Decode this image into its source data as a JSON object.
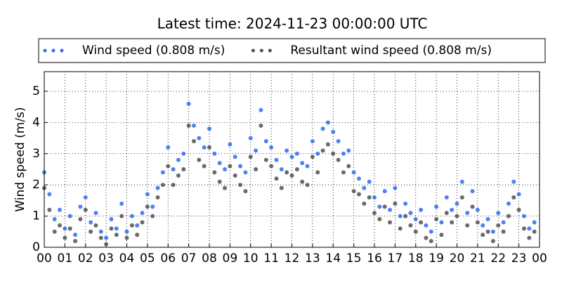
{
  "chart_data": {
    "type": "scatter",
    "title": "Latest time: 2024-11-23 00:00:00 UTC",
    "ylabel": "Wind speed (m/s)",
    "x": [
      0,
      0.25,
      0.5,
      0.75,
      1,
      1.25,
      1.5,
      1.75,
      2,
      2.25,
      2.5,
      2.75,
      3,
      3.25,
      3.5,
      3.75,
      4,
      4.25,
      4.5,
      4.75,
      5,
      5.25,
      5.5,
      5.75,
      6,
      6.25,
      6.5,
      6.75,
      7,
      7.25,
      7.5,
      7.75,
      8,
      8.25,
      8.5,
      8.75,
      9,
      9.25,
      9.5,
      9.75,
      10,
      10.25,
      10.5,
      10.75,
      11,
      11.25,
      11.5,
      11.75,
      12,
      12.25,
      12.5,
      12.75,
      13,
      13.25,
      13.5,
      13.75,
      14,
      14.25,
      14.5,
      14.75,
      15,
      15.25,
      15.5,
      15.75,
      16,
      16.25,
      16.5,
      16.75,
      17,
      17.25,
      17.5,
      17.75,
      18,
      18.25,
      18.5,
      18.75,
      19,
      19.25,
      19.5,
      19.75,
      20,
      20.25,
      20.5,
      20.75,
      21,
      21.25,
      21.5,
      21.75,
      22,
      22.25,
      22.5,
      22.75,
      23,
      23.25,
      23.5,
      23.75
    ],
    "series": [
      {
        "name": "Wind speed (0.808 m/s)",
        "color": "#2f6cf0",
        "values": [
          2.4,
          1.7,
          0.9,
          1.2,
          0.6,
          1.0,
          0.4,
          1.3,
          1.6,
          0.8,
          1.1,
          0.5,
          0.3,
          0.9,
          0.6,
          1.4,
          0.5,
          1.0,
          0.7,
          1.1,
          1.7,
          1.3,
          1.9,
          2.4,
          3.2,
          2.5,
          2.8,
          3.0,
          4.6,
          3.9,
          3.5,
          3.2,
          3.8,
          3.0,
          2.7,
          2.5,
          3.3,
          2.9,
          2.6,
          2.4,
          3.5,
          3.1,
          4.4,
          3.4,
          3.2,
          2.8,
          2.5,
          3.1,
          2.9,
          3.0,
          2.7,
          2.6,
          3.4,
          3.0,
          3.8,
          4.0,
          3.7,
          3.4,
          3.0,
          3.1,
          2.4,
          2.2,
          1.9,
          2.1,
          1.6,
          1.3,
          1.8,
          1.2,
          1.9,
          1.0,
          1.4,
          1.1,
          0.9,
          1.2,
          0.7,
          0.5,
          1.3,
          0.8,
          1.6,
          1.2,
          1.4,
          2.1,
          1.1,
          1.8,
          1.2,
          0.7,
          0.9,
          0.5,
          1.1,
          0.8,
          1.4,
          2.1,
          1.7,
          1.0,
          0.6,
          0.8
        ]
      },
      {
        "name": "Resultant wind speed (0.808 m/s)",
        "color": "#505050",
        "values": [
          1.9,
          1.2,
          0.5,
          0.7,
          0.3,
          0.6,
          0.2,
          0.9,
          1.2,
          0.5,
          0.7,
          0.3,
          0.1,
          0.6,
          0.4,
          1.0,
          0.3,
          0.7,
          0.4,
          0.8,
          1.3,
          1.0,
          1.6,
          2.0,
          2.6,
          2.0,
          2.3,
          2.5,
          3.9,
          3.4,
          2.8,
          2.6,
          3.2,
          2.4,
          2.1,
          1.9,
          2.6,
          2.3,
          2.0,
          1.8,
          2.9,
          2.5,
          3.9,
          2.8,
          2.6,
          2.2,
          1.9,
          2.4,
          2.3,
          2.5,
          2.1,
          2.0,
          2.9,
          2.4,
          3.1,
          3.3,
          3.0,
          2.8,
          2.4,
          2.6,
          1.8,
          1.7,
          1.4,
          1.6,
          1.1,
          0.9,
          1.3,
          0.8,
          1.4,
          0.6,
          1.0,
          0.7,
          0.5,
          0.8,
          0.3,
          0.2,
          0.9,
          0.4,
          1.1,
          0.8,
          1.0,
          1.6,
          0.7,
          1.3,
          0.8,
          0.4,
          0.5,
          0.2,
          0.7,
          0.5,
          1.0,
          1.6,
          1.2,
          0.6,
          0.3,
          0.5
        ]
      }
    ],
    "xlim": [
      0,
      24
    ],
    "xticks": [
      {
        "value": 0,
        "label": "00"
      },
      {
        "value": 1,
        "label": "01"
      },
      {
        "value": 2,
        "label": "02"
      },
      {
        "value": 3,
        "label": "03"
      },
      {
        "value": 4,
        "label": "04"
      },
      {
        "value": 5,
        "label": "05"
      },
      {
        "value": 6,
        "label": "06"
      },
      {
        "value": 7,
        "label": "07"
      },
      {
        "value": 8,
        "label": "08"
      },
      {
        "value": 9,
        "label": "09"
      },
      {
        "value": 10,
        "label": "10"
      },
      {
        "value": 11,
        "label": "11"
      },
      {
        "value": 12,
        "label": "12"
      },
      {
        "value": 13,
        "label": "13"
      },
      {
        "value": 14,
        "label": "14"
      },
      {
        "value": 15,
        "label": "15"
      },
      {
        "value": 16,
        "label": "16"
      },
      {
        "value": 17,
        "label": "17"
      },
      {
        "value": 18,
        "label": "18"
      },
      {
        "value": 19,
        "label": "19"
      },
      {
        "value": 20,
        "label": "20"
      },
      {
        "value": 21,
        "label": "21"
      },
      {
        "value": 22,
        "label": "22"
      },
      {
        "value": 23,
        "label": "23"
      },
      {
        "value": 24,
        "label": "00"
      }
    ],
    "ylim": [
      0,
      5.63
    ],
    "yticks": [
      0,
      1,
      2,
      3,
      4,
      5
    ],
    "grid": true,
    "legend": "top"
  }
}
